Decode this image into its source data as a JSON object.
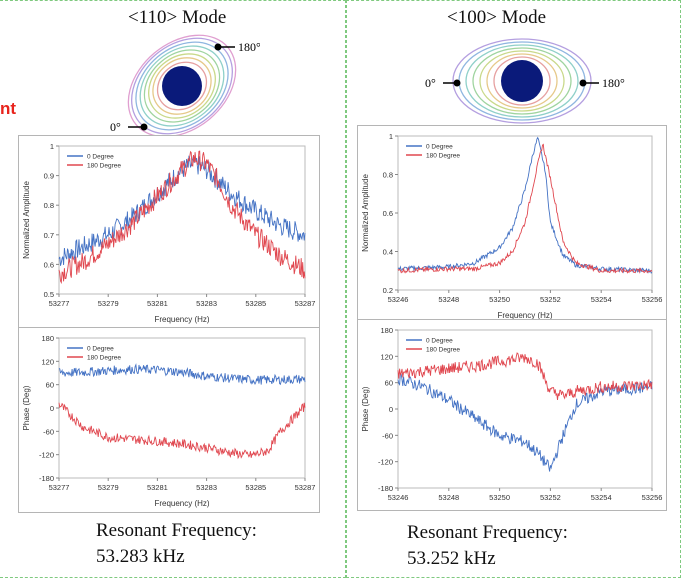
{
  "left": {
    "title": "<110> Mode",
    "label_180": "180°",
    "label_0": "0°",
    "fragment": "nt",
    "resonant_label": "Resonant Frequency:",
    "resonant_value": "53.283 kHz"
  },
  "right": {
    "title": "<100> Mode",
    "label_180": "180°",
    "label_0": "0°",
    "resonant_label": "Resonant Frequency:",
    "resonant_value": "53.252 kHz"
  },
  "colors": {
    "deg0": "#4472c4",
    "deg180": "#e0474f",
    "disk": "#0a1a7a"
  },
  "chart_data": [
    {
      "id": "amp110",
      "type": "line",
      "xlabel": "Frequency (Hz)",
      "ylabel": "Normalized Amplitude",
      "xlim": [
        53277,
        53287
      ],
      "ylim": [
        0.5,
        1
      ],
      "xticks": [
        53277,
        53279,
        53281,
        53283,
        53285,
        53287
      ],
      "yticks": [
        0.5,
        0.6,
        0.7,
        0.8,
        0.9,
        1
      ],
      "ytick_labels": [
        "0.5",
        "0.6",
        "0.7",
        "0.8",
        "0.9",
        "1"
      ],
      "legend": "top-left",
      "series": [
        {
          "name": "0 Degree",
          "color": "#4472c4",
          "x": [
            53277,
            53278,
            53279,
            53280,
            53281,
            53282,
            53282.5,
            53283,
            53283.5,
            53284,
            53285,
            53286,
            53287
          ],
          "y": [
            0.62,
            0.66,
            0.7,
            0.76,
            0.84,
            0.92,
            0.94,
            0.92,
            0.88,
            0.84,
            0.78,
            0.73,
            0.7
          ]
        },
        {
          "name": "180 Degree",
          "color": "#e0474f",
          "x": [
            53277,
            53278,
            53279,
            53280,
            53281,
            53282,
            53282.5,
            53283,
            53283.5,
            53284,
            53285,
            53286,
            53287
          ],
          "y": [
            0.57,
            0.61,
            0.67,
            0.74,
            0.83,
            0.92,
            0.96,
            0.94,
            0.88,
            0.8,
            0.7,
            0.63,
            0.58
          ]
        }
      ]
    },
    {
      "id": "amp100",
      "type": "line",
      "xlabel": "Frequency (Hz)",
      "ylabel": "Normalized Amplitude",
      "xlim": [
        53246,
        53256
      ],
      "ylim": [
        0.2,
        1
      ],
      "xticks": [
        53246,
        53248,
        53250,
        53252,
        53254,
        53256
      ],
      "yticks": [
        0.2,
        0.4,
        0.6,
        0.8,
        1
      ],
      "ytick_labels": [
        "0.2",
        "0.4",
        "0.6",
        "0.8",
        "1"
      ],
      "legend": "top-left",
      "series": [
        {
          "name": "0 Degree",
          "color": "#4472c4",
          "x": [
            53246,
            53248,
            53249,
            53250,
            53250.5,
            53251,
            53251.3,
            53251.5,
            53251.8,
            53252,
            53252.5,
            53253,
            53254,
            53256
          ],
          "y": [
            0.31,
            0.32,
            0.34,
            0.42,
            0.52,
            0.72,
            0.9,
            0.99,
            0.82,
            0.55,
            0.38,
            0.33,
            0.31,
            0.3
          ]
        },
        {
          "name": "180 Degree",
          "color": "#e0474f",
          "x": [
            53246,
            53248,
            53249,
            53250,
            53250.5,
            53251,
            53251.5,
            53251.7,
            53252,
            53252.5,
            53253,
            53254,
            53256
          ],
          "y": [
            0.3,
            0.31,
            0.31,
            0.34,
            0.4,
            0.55,
            0.85,
            0.96,
            0.78,
            0.45,
            0.34,
            0.3,
            0.3
          ]
        }
      ]
    },
    {
      "id": "phase110",
      "type": "line",
      "xlabel": "Frequency (Hz)",
      "ylabel": "Phase (Deg)",
      "xlim": [
        53277,
        53287
      ],
      "ylim": [
        -180,
        180
      ],
      "xticks": [
        53277,
        53279,
        53281,
        53283,
        53285,
        53287
      ],
      "yticks": [
        -180,
        -120,
        -60,
        0,
        60,
        120,
        180
      ],
      "ytick_labels": [
        "-180",
        "-120",
        "-60",
        "0",
        "60",
        "120",
        "180"
      ],
      "legend": "top-left",
      "series": [
        {
          "name": "0 Degree",
          "color": "#4472c4",
          "x": [
            53277,
            53278,
            53279,
            53280,
            53281,
            53282,
            53283,
            53284,
            53285,
            53286,
            53287
          ],
          "y": [
            90,
            92,
            96,
            100,
            98,
            92,
            82,
            76,
            72,
            73,
            74
          ]
        },
        {
          "name": "180 Degree",
          "color": "#e0474f",
          "x": [
            53277,
            53277.5,
            53278,
            53279,
            53280,
            53281,
            53282,
            53283,
            53284,
            53284.8,
            53285.5,
            53286,
            53287
          ],
          "y": [
            10,
            -20,
            -50,
            -75,
            -80,
            -85,
            -92,
            -102,
            -115,
            -122,
            -110,
            -60,
            5
          ]
        }
      ]
    },
    {
      "id": "phase100",
      "type": "line",
      "xlabel": "",
      "ylabel": "Phase (Deg)",
      "xlim": [
        53246,
        53256
      ],
      "ylim": [
        -180,
        180
      ],
      "xticks": [
        53246,
        53248,
        53250,
        53252,
        53254,
        53256
      ],
      "yticks": [
        -180,
        -120,
        -60,
        0,
        60,
        120,
        180
      ],
      "ytick_labels": [
        "-180",
        "-120",
        "-60",
        "0",
        "60",
        "120",
        "180"
      ],
      "legend": "top-left",
      "series": [
        {
          "name": "0 Degree",
          "color": "#4472c4",
          "x": [
            53246,
            53247,
            53248,
            53249,
            53250,
            53251,
            53251.5,
            53252,
            53252.5,
            53253,
            53254,
            53256
          ],
          "y": [
            70,
            50,
            20,
            -20,
            -60,
            -75,
            -100,
            -138,
            -60,
            10,
            40,
            50
          ]
        },
        {
          "name": "180 Degree",
          "color": "#e0474f",
          "x": [
            53246,
            53247,
            53248,
            53249,
            53250,
            53251,
            53251.5,
            53252,
            53252.5,
            53253,
            53254,
            53256
          ],
          "y": [
            80,
            86,
            92,
            98,
            108,
            118,
            105,
            40,
            30,
            40,
            50,
            55
          ]
        }
      ]
    }
  ]
}
